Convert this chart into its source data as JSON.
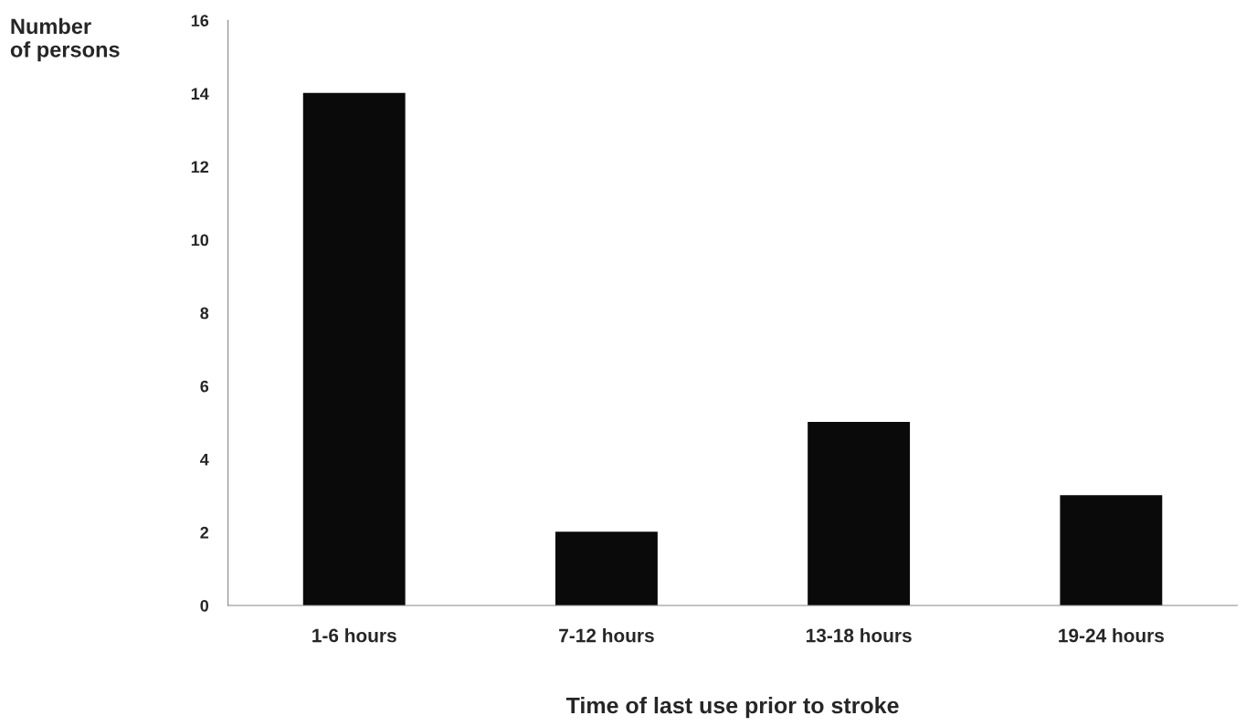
{
  "chart_data": {
    "type": "bar",
    "xlabel": "Time of last use prior to stroke",
    "ylabel": "Number\nof persons",
    "categories": [
      "1-6 hours",
      "7-12 hours",
      "13-18 hours",
      "19-24 hours"
    ],
    "values": [
      14,
      2,
      5,
      3
    ],
    "color": "#0a0a0a",
    "ylim": [
      0,
      16
    ],
    "yticks": [
      0,
      2,
      4,
      6,
      8,
      10,
      12,
      14,
      16
    ],
    "grid": false,
    "legend": false
  }
}
